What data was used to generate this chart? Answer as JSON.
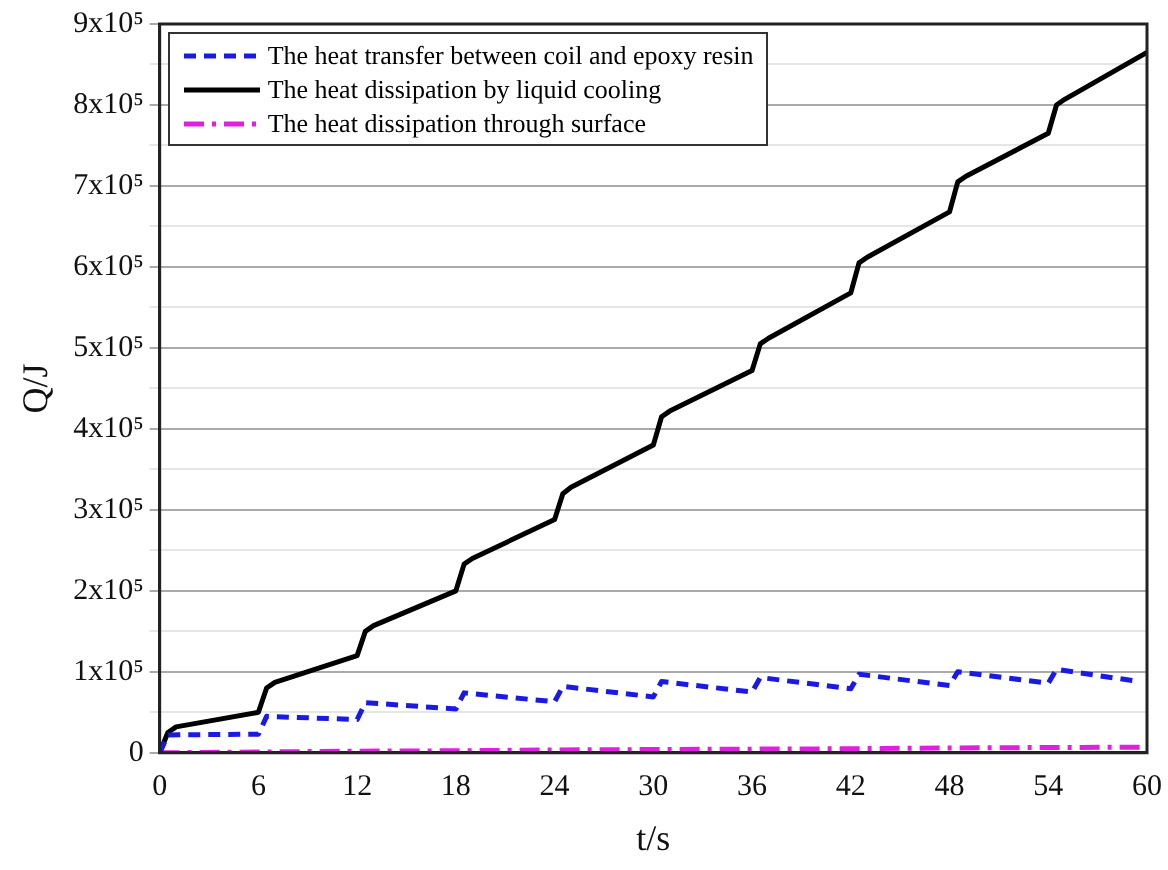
{
  "chart_data": {
    "type": "line",
    "xlabel": "t/s",
    "ylabel": "Q/J",
    "xlim": [
      0,
      60
    ],
    "xticks": [
      0,
      6,
      12,
      18,
      24,
      30,
      36,
      42,
      48,
      54,
      60
    ],
    "ylim": [
      0,
      900000
    ],
    "yticks": [
      {
        "value": 0,
        "label": "0"
      },
      {
        "value": 50000,
        "label": null
      },
      {
        "value": 100000,
        "label": "1x10⁵"
      },
      {
        "value": 150000,
        "label": null
      },
      {
        "value": 200000,
        "label": "2x10⁵"
      },
      {
        "value": 250000,
        "label": null
      },
      {
        "value": 300000,
        "label": "3x10⁵"
      },
      {
        "value": 350000,
        "label": null
      },
      {
        "value": 400000,
        "label": "4x10⁵"
      },
      {
        "value": 450000,
        "label": null
      },
      {
        "value": 500000,
        "label": "5x10⁵"
      },
      {
        "value": 550000,
        "label": null
      },
      {
        "value": 600000,
        "label": "6x10⁵"
      },
      {
        "value": 650000,
        "label": null
      },
      {
        "value": 700000,
        "label": "7x10⁵"
      },
      {
        "value": 750000,
        "label": null
      },
      {
        "value": 800000,
        "label": "8x10⁵"
      },
      {
        "value": 850000,
        "label": null
      },
      {
        "value": 900000,
        "label": "9x10⁵"
      }
    ],
    "grid": "y",
    "legend": "top left",
    "marker": "none",
    "series": [
      {
        "name": "The heat transfer between coil and epoxy resin",
        "color": "#1a1ae6",
        "line_style": "dashed",
        "x": [
          0,
          0.5,
          6,
          6.5,
          12,
          12.5,
          18,
          18.5,
          24,
          24.5,
          30,
          30.5,
          36,
          36.5,
          42,
          42.5,
          48,
          48.5,
          54,
          54.5,
          59.5
        ],
        "values": [
          0,
          22000,
          23000,
          45000,
          41000,
          62000,
          54000,
          74000,
          63000,
          82000,
          69000,
          88000,
          75000,
          93000,
          79000,
          97000,
          83000,
          100000,
          86000,
          103000,
          88000
        ]
      },
      {
        "name": "The heat dissipation by liquid cooling",
        "color": "#000000",
        "line_style": "solid",
        "x": [
          0,
          0.5,
          1,
          6,
          6.5,
          7,
          12,
          12.5,
          13,
          18,
          18.5,
          19,
          24,
          24.5,
          25,
          30,
          30.5,
          31,
          36,
          36.5,
          37,
          42,
          42.5,
          43,
          48,
          48.5,
          49,
          54,
          54.5,
          55,
          60
        ],
        "values": [
          0,
          25000,
          32000,
          50000,
          80000,
          87000,
          120000,
          150000,
          157000,
          200000,
          233000,
          240000,
          288000,
          320000,
          328000,
          380000,
          415000,
          422000,
          472000,
          505000,
          512000,
          568000,
          605000,
          612000,
          668000,
          705000,
          712000,
          765000,
          800000,
          807000,
          865000
        ]
      },
      {
        "name": "The heat dissipation through surface",
        "color": "#e020e0",
        "line_style": "dashdot",
        "x": [
          0,
          6,
          12,
          18,
          24,
          30,
          36,
          42,
          48,
          54,
          60
        ],
        "values": [
          0,
          1000,
          2000,
          2500,
          3500,
          4000,
          4500,
          5000,
          6000,
          6500,
          7000
        ]
      }
    ]
  }
}
